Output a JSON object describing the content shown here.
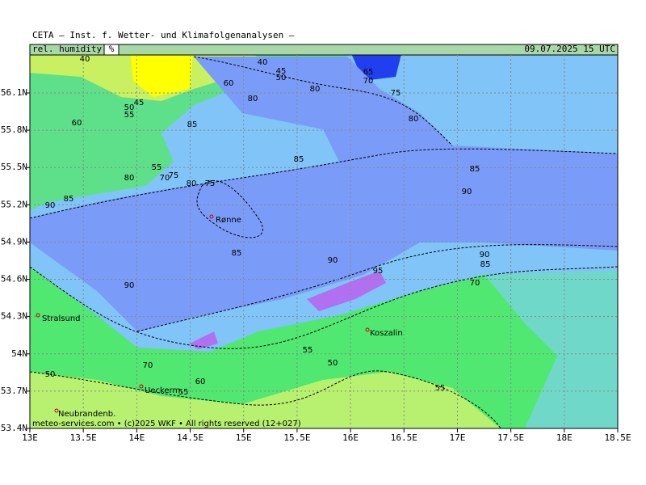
{
  "header": {
    "title": "CETA – Inst. f. Wetter- und Klimafolgenanalysen –",
    "field": "rel. humidity",
    "unit": "%",
    "datetime": "09.07.2025 15 UTC"
  },
  "axes": {
    "lat": [
      "56.1N",
      "55.8N",
      "55.5N",
      "55.2N",
      "54.9N",
      "54.6N",
      "54.3N",
      "54N",
      "53.7N",
      "53.4N"
    ],
    "lon": [
      "13E",
      "13.5E",
      "14E",
      "14.5E",
      "15E",
      "15.5E",
      "16E",
      "16.5E",
      "17E",
      "17.5E",
      "18E",
      "18.5E"
    ]
  },
  "cities": [
    "Stralsund",
    "Rønne",
    "Koszalin",
    "Ueckerm.",
    "Neubrandenb."
  ],
  "contour_labels": [
    "40",
    "40",
    "45",
    "45",
    "50",
    "50",
    "50",
    "50",
    "55",
    "55",
    "55",
    "55",
    "55",
    "60",
    "60",
    "60",
    "65",
    "70",
    "70",
    "70",
    "70",
    "75",
    "75",
    "75",
    "80",
    "80",
    "80",
    "80",
    "80",
    "85",
    "85",
    "85",
    "85",
    "85",
    "85",
    "90",
    "90",
    "90",
    "90",
    "90",
    "95"
  ],
  "footer": "meteo-services.com • (c)2025 WKF • All rights reserved (12+027)"
}
